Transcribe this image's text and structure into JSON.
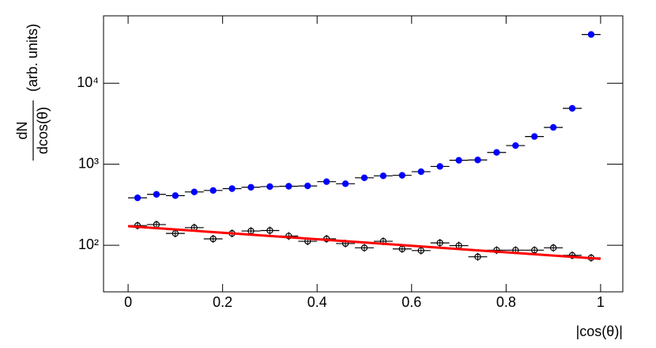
{
  "chart_data": {
    "type": "scatter",
    "x_label": "|cos(θ)|",
    "y_label_numerator": "dN",
    "y_label_denominator": "dcos(θ)",
    "y_label_units": "(arb. units)",
    "xlim": [
      -0.052,
      1.047
    ],
    "ylim": [
      26.6,
      68000
    ],
    "log_y": true,
    "xticks": [
      0,
      0.2,
      0.4,
      0.6,
      0.8,
      1
    ],
    "yticks": [
      {
        "value": 100,
        "label": "10²"
      },
      {
        "value": 1000,
        "label": "10³"
      },
      {
        "value": 10000,
        "label": "10⁴"
      }
    ],
    "x": [
      0.02,
      0.06,
      0.1,
      0.14,
      0.18,
      0.22,
      0.26,
      0.3,
      0.34,
      0.38,
      0.42,
      0.46,
      0.5,
      0.54,
      0.58,
      0.62,
      0.66,
      0.7,
      0.74,
      0.78,
      0.82,
      0.86,
      0.9,
      0.94,
      0.98
    ],
    "xerr": 0.02,
    "series": [
      {
        "color": "#0000ff",
        "marker": "filled",
        "values": [
          385,
          425,
          410,
          455,
          475,
          500,
          520,
          530,
          535,
          540,
          610,
          575,
          680,
          720,
          730,
          810,
          940,
          1120,
          1130,
          1400,
          1700,
          2200,
          2850,
          4900,
          40000
        ]
      },
      {
        "color": "#000000",
        "marker": "open",
        "values": [
          175,
          180,
          140,
          165,
          120,
          140,
          150,
          152,
          130,
          112,
          120,
          105,
          93,
          112,
          90,
          86,
          107,
          99,
          72,
          87,
          87,
          87,
          93,
          75,
          70
        ]
      }
    ],
    "fit": {
      "color": "#ff0000",
      "x": [
        0,
        1
      ],
      "values": [
        172,
        68
      ]
    }
  }
}
